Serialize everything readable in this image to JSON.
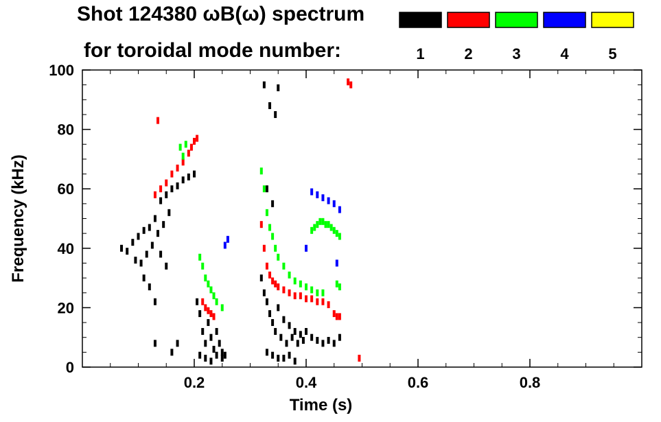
{
  "chart_data": {
    "type": "scatter",
    "title": "Shot 124380 ωB(ω) spectrum",
    "subtitle": "for toroidal mode number:",
    "xlabel": "Time (s)",
    "ylabel": "Frequency (kHz)",
    "xlim": [
      0.0,
      1.0
    ],
    "ylim": [
      0,
      100
    ],
    "x_ticks": [
      0.2,
      0.4,
      0.6,
      0.8
    ],
    "x_tick_labels": [
      "0.2",
      "0.4",
      "0.6",
      "0.8"
    ],
    "y_ticks": [
      0,
      20,
      40,
      60,
      80,
      100
    ],
    "y_tick_labels": [
      "0",
      "20",
      "40",
      "60",
      "80",
      "100"
    ],
    "grid": false,
    "legend_position": "top-right",
    "series": [
      {
        "name": "1",
        "color": "#000000",
        "points": [
          [
            0.07,
            40
          ],
          [
            0.08,
            39
          ],
          [
            0.09,
            42
          ],
          [
            0.095,
            36
          ],
          [
            0.1,
            44
          ],
          [
            0.105,
            35
          ],
          [
            0.11,
            46
          ],
          [
            0.115,
            38
          ],
          [
            0.12,
            47
          ],
          [
            0.125,
            41
          ],
          [
            0.13,
            50
          ],
          [
            0.135,
            45
          ],
          [
            0.14,
            56
          ],
          [
            0.145,
            48
          ],
          [
            0.15,
            58
          ],
          [
            0.155,
            52
          ],
          [
            0.16,
            60
          ],
          [
            0.17,
            61
          ],
          [
            0.18,
            63
          ],
          [
            0.19,
            64
          ],
          [
            0.2,
            65
          ],
          [
            0.11,
            30
          ],
          [
            0.12,
            27
          ],
          [
            0.13,
            22
          ],
          [
            0.14,
            38
          ],
          [
            0.15,
            34
          ],
          [
            0.13,
            8
          ],
          [
            0.16,
            5
          ],
          [
            0.17,
            8
          ],
          [
            0.205,
            22
          ],
          [
            0.21,
            18
          ],
          [
            0.215,
            12
          ],
          [
            0.22,
            8
          ],
          [
            0.225,
            15
          ],
          [
            0.23,
            10
          ],
          [
            0.235,
            6
          ],
          [
            0.24,
            12
          ],
          [
            0.245,
            8
          ],
          [
            0.25,
            5
          ],
          [
            0.255,
            4
          ],
          [
            0.21,
            4
          ],
          [
            0.22,
            3
          ],
          [
            0.23,
            2
          ],
          [
            0.24,
            4
          ],
          [
            0.25,
            3
          ],
          [
            0.32,
            30
          ],
          [
            0.325,
            25
          ],
          [
            0.33,
            22
          ],
          [
            0.335,
            18
          ],
          [
            0.34,
            15
          ],
          [
            0.345,
            12
          ],
          [
            0.35,
            20
          ],
          [
            0.355,
            10
          ],
          [
            0.36,
            16
          ],
          [
            0.365,
            8
          ],
          [
            0.37,
            14
          ],
          [
            0.375,
            10
          ],
          [
            0.38,
            12
          ],
          [
            0.385,
            8
          ],
          [
            0.39,
            11
          ],
          [
            0.395,
            9
          ],
          [
            0.4,
            12
          ],
          [
            0.41,
            10
          ],
          [
            0.42,
            9
          ],
          [
            0.43,
            8
          ],
          [
            0.44,
            9
          ],
          [
            0.45,
            8
          ],
          [
            0.46,
            10
          ],
          [
            0.33,
            5
          ],
          [
            0.34,
            4
          ],
          [
            0.35,
            3
          ],
          [
            0.36,
            3
          ],
          [
            0.37,
            4
          ],
          [
            0.38,
            2
          ],
          [
            0.325,
            95
          ],
          [
            0.335,
            88
          ],
          [
            0.345,
            85
          ],
          [
            0.35,
            94
          ],
          [
            0.33,
            60
          ],
          [
            0.34,
            55
          ]
        ]
      },
      {
        "name": "2",
        "color": "#ff0000",
        "points": [
          [
            0.13,
            58
          ],
          [
            0.14,
            60
          ],
          [
            0.15,
            62
          ],
          [
            0.16,
            65
          ],
          [
            0.17,
            67
          ],
          [
            0.18,
            69
          ],
          [
            0.19,
            72
          ],
          [
            0.195,
            74
          ],
          [
            0.2,
            76
          ],
          [
            0.205,
            77
          ],
          [
            0.135,
            83
          ],
          [
            0.215,
            22
          ],
          [
            0.22,
            20
          ],
          [
            0.225,
            19
          ],
          [
            0.23,
            18
          ],
          [
            0.235,
            17
          ],
          [
            0.32,
            48
          ],
          [
            0.325,
            40
          ],
          [
            0.33,
            34
          ],
          [
            0.335,
            31
          ],
          [
            0.34,
            29
          ],
          [
            0.345,
            28
          ],
          [
            0.35,
            27
          ],
          [
            0.36,
            26
          ],
          [
            0.37,
            25
          ],
          [
            0.38,
            24
          ],
          [
            0.39,
            24
          ],
          [
            0.4,
            23
          ],
          [
            0.41,
            23
          ],
          [
            0.42,
            22
          ],
          [
            0.43,
            22
          ],
          [
            0.44,
            21
          ],
          [
            0.45,
            18
          ],
          [
            0.455,
            17
          ],
          [
            0.46,
            17
          ],
          [
            0.475,
            96
          ],
          [
            0.48,
            95
          ],
          [
            0.495,
            3
          ]
        ]
      },
      {
        "name": "3",
        "color": "#00ff00",
        "points": [
          [
            0.175,
            74
          ],
          [
            0.18,
            71
          ],
          [
            0.185,
            75
          ],
          [
            0.21,
            37
          ],
          [
            0.215,
            34
          ],
          [
            0.22,
            30
          ],
          [
            0.225,
            28
          ],
          [
            0.23,
            26
          ],
          [
            0.235,
            24
          ],
          [
            0.24,
            22
          ],
          [
            0.25,
            20
          ],
          [
            0.32,
            66
          ],
          [
            0.325,
            60
          ],
          [
            0.33,
            52
          ],
          [
            0.335,
            47
          ],
          [
            0.34,
            44
          ],
          [
            0.345,
            40
          ],
          [
            0.35,
            37
          ],
          [
            0.36,
            34
          ],
          [
            0.37,
            31
          ],
          [
            0.38,
            29
          ],
          [
            0.39,
            28
          ],
          [
            0.4,
            27
          ],
          [
            0.41,
            26
          ],
          [
            0.42,
            25
          ],
          [
            0.43,
            25
          ],
          [
            0.41,
            46
          ],
          [
            0.415,
            47
          ],
          [
            0.42,
            48
          ],
          [
            0.425,
            49
          ],
          [
            0.43,
            49
          ],
          [
            0.435,
            48
          ],
          [
            0.44,
            48
          ],
          [
            0.445,
            47
          ],
          [
            0.45,
            46
          ],
          [
            0.455,
            45
          ],
          [
            0.46,
            44
          ],
          [
            0.455,
            28
          ],
          [
            0.46,
            27
          ]
        ]
      },
      {
        "name": "4",
        "color": "#0000ff",
        "points": [
          [
            0.255,
            41
          ],
          [
            0.26,
            43
          ],
          [
            0.41,
            59
          ],
          [
            0.42,
            58
          ],
          [
            0.43,
            57
          ],
          [
            0.44,
            56
          ],
          [
            0.45,
            55
          ],
          [
            0.46,
            53
          ],
          [
            0.4,
            40
          ],
          [
            0.455,
            35
          ]
        ]
      },
      {
        "name": "5",
        "color": "#ffff00",
        "points": []
      }
    ]
  }
}
